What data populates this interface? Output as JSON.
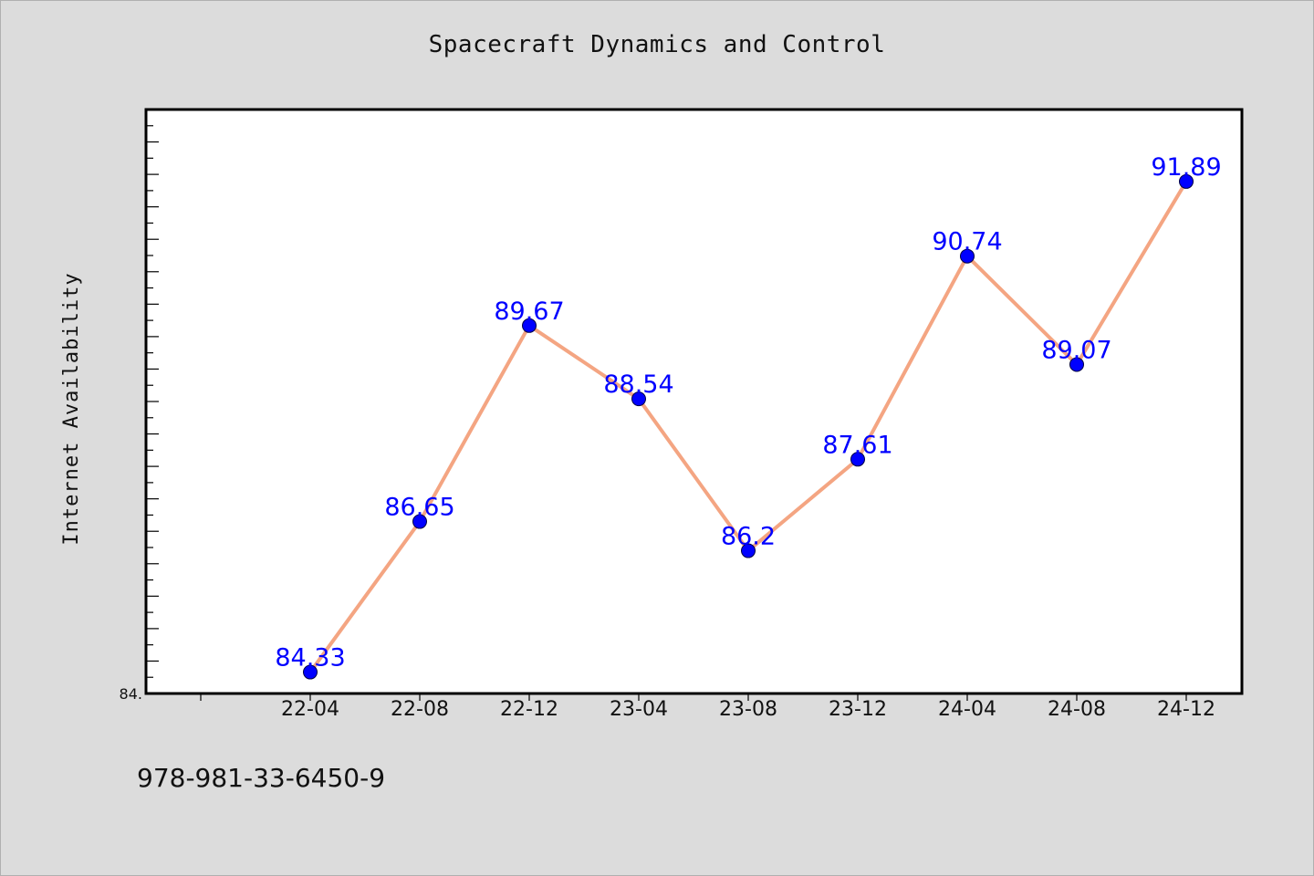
{
  "chart_data": {
    "type": "line",
    "title": "Spacecraft Dynamics and Control",
    "xlabel": "",
    "ylabel": "Internet Availability",
    "categories": [
      "22-04",
      "22-08",
      "22-12",
      "23-04",
      "23-08",
      "23-12",
      "24-04",
      "24-08",
      "24-12"
    ],
    "series": [
      {
        "values": [
          84.33,
          86.65,
          89.67,
          88.54,
          86.2,
          87.61,
          90.74,
          89.07,
          91.89
        ],
        "line_color": "#f4a582",
        "marker_color": "#0000ff"
      }
    ],
    "data_labels": [
      "84.33",
      "86.65",
      "89.67",
      "88.54",
      "86.2",
      "87.61",
      "90.74",
      "89.07",
      "91.89"
    ],
    "y_tick_label": "84.",
    "ylim": [
      84.0,
      93.0
    ],
    "grid": false,
    "legend": "none"
  },
  "footer": {
    "text": "978-981-33-6450-9"
  }
}
